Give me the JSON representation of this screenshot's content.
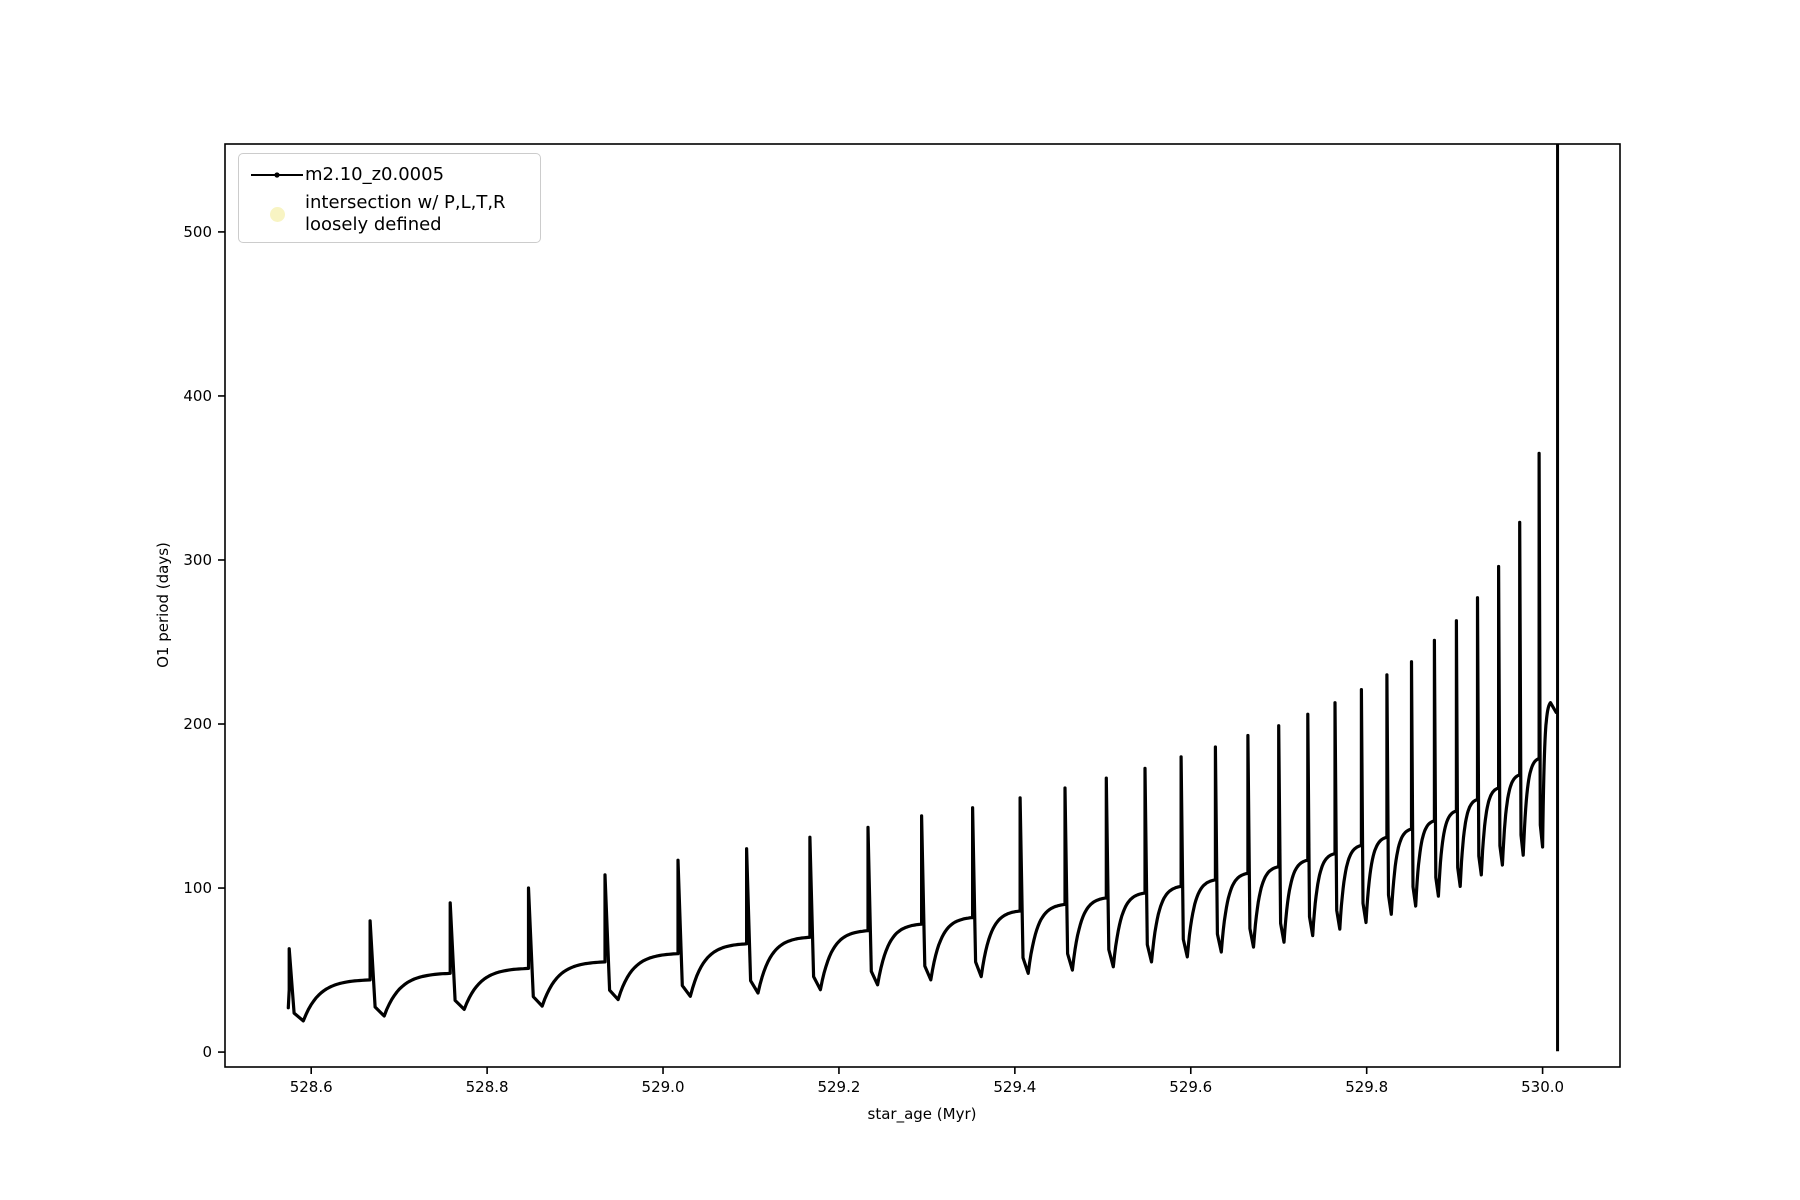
{
  "figure": {
    "background": "#ffffff"
  },
  "chart_data": {
    "type": "line",
    "title": "",
    "xlabel": "star_age (Myr)",
    "ylabel": "O1 period (days)",
    "xlim": [
      528.502,
      530.088
    ],
    "ylim": [
      -9.1,
      553.6
    ],
    "xticks": [
      528.6,
      528.8,
      529.0,
      529.2,
      529.4,
      529.6,
      529.8,
      530.0
    ],
    "xtick_labels": [
      "528.6",
      "528.8",
      "529.0",
      "529.2",
      "529.4",
      "529.6",
      "529.8",
      "530.0"
    ],
    "yticks": [
      0,
      100,
      200,
      300,
      400,
      500
    ],
    "ytick_labels": [
      "0",
      "100",
      "200",
      "300",
      "400",
      "500"
    ],
    "grid": false,
    "legend_position": "upper-left",
    "axis_color": "#000000",
    "series": [
      {
        "name": "m2.10_z0.0005",
        "color": "#000000",
        "line_style": "solid-with-point-markers",
        "start_point": {
          "x": 528.574,
          "y": 27
        },
        "oscillations": {
          "x": [
            528.575,
            528.667,
            528.758,
            528.847,
            528.934,
            529.017,
            529.095,
            529.167,
            529.233,
            529.294,
            529.352,
            529.406,
            529.457,
            529.504,
            529.548,
            529.589,
            529.628,
            529.665,
            529.7,
            529.733,
            529.764,
            529.794,
            529.823,
            529.851,
            529.877,
            529.902,
            529.926,
            529.95,
            529.974,
            529.996
          ],
          "peak": [
            63,
            80,
            91,
            100,
            108,
            117,
            124,
            131,
            137,
            144,
            149,
            155,
            161,
            167,
            173,
            180,
            186,
            193,
            199,
            206,
            213,
            221,
            230,
            238,
            251,
            263,
            277,
            296,
            323,
            365
          ],
          "dip_after": [
            19,
            22,
            26,
            28,
            32,
            34,
            36,
            38,
            41,
            44,
            46,
            48,
            50,
            52,
            55,
            58,
            61,
            64,
            67,
            71,
            75,
            79,
            84,
            89,
            95,
            101,
            108,
            114,
            120,
            125
          ],
          "base_before": [
            38,
            44,
            48,
            51,
            55,
            60,
            66,
            70,
            74,
            78,
            82,
            86,
            90,
            94,
            97,
            101,
            105,
            109,
            113,
            117,
            121,
            126,
            131,
            136,
            141,
            147,
            154,
            161,
            169,
            179
          ]
        },
        "terminal_plunge": {
          "x": 530.017,
          "y_bottom": 0.5,
          "y_top_clipped": 553.6,
          "pre_hump": {
            "peak_x": 530.009,
            "peak_y": 213,
            "end_x": 530.0155,
            "end_y": 207
          }
        }
      },
      {
        "name": "intersection w/ P,L,T,R loosely defined",
        "color": "#f8f4c3",
        "marker": "filled-circle"
      }
    ],
    "legend": {
      "border_color": "#cccccc",
      "entries": [
        {
          "label": "m2.10_z0.0005",
          "marker": "line-with-dot",
          "color": "#000000"
        },
        {
          "label_line1": "intersection w/ P,L,T,R",
          "label_line2": "loosely defined",
          "marker": "filled-circle",
          "color": "#f8f4c3"
        }
      ]
    }
  }
}
